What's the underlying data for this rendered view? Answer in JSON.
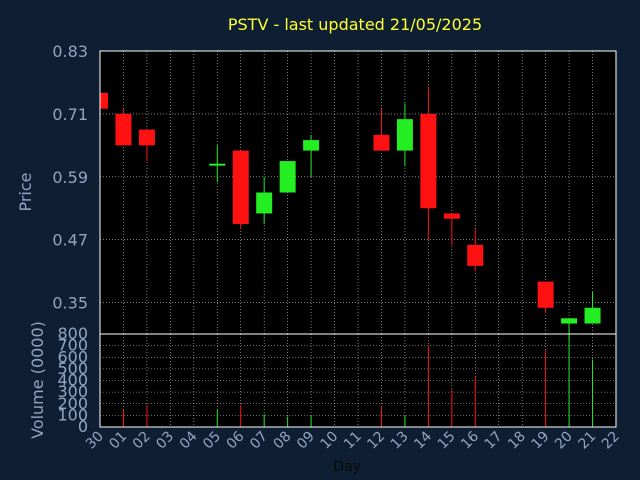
{
  "chart_data": {
    "type": "candlestick",
    "title": "PSTV - last updated 21/05/2025",
    "xlabel": "Day",
    "price_ylabel": "Price",
    "volume_ylabel": "Volume (0000)",
    "price_ylim": [
      0.29,
      0.83
    ],
    "price_ticks": [
      "0.83",
      "0.71",
      "0.59",
      "0.47",
      "0.35"
    ],
    "volume_ylim": [
      0,
      800
    ],
    "volume_ticks": [
      "800",
      "700",
      "600",
      "500",
      "400",
      "300",
      "200",
      "100",
      "0"
    ],
    "x_ticks": [
      "30",
      "01",
      "02",
      "03",
      "04",
      "05",
      "06",
      "07",
      "08",
      "09",
      "10",
      "11",
      "12",
      "13",
      "14",
      "15",
      "16",
      "17",
      "18",
      "19",
      "20",
      "21",
      "22"
    ],
    "colors": {
      "up": "#22ee22",
      "down": "#ff1111",
      "grid": "#ffffff",
      "text": "#8fa6c3",
      "title": "#ffff33",
      "background": "#0f1f33"
    },
    "candles": [
      {
        "day": "30",
        "open": 0.75,
        "high": 0.75,
        "low": 0.72,
        "close": 0.72,
        "volume": 0
      },
      {
        "day": "01",
        "open": 0.71,
        "high": 0.72,
        "low": 0.65,
        "close": 0.65,
        "volume": 150
      },
      {
        "day": "02",
        "open": 0.68,
        "high": 0.68,
        "low": 0.62,
        "close": 0.65,
        "volume": 190
      },
      {
        "day": "05",
        "open": 0.615,
        "high": 0.65,
        "low": 0.58,
        "close": 0.615,
        "volume": 150
      },
      {
        "day": "06",
        "open": 0.64,
        "high": 0.64,
        "low": 0.49,
        "close": 0.5,
        "volume": 190
      },
      {
        "day": "07",
        "open": 0.52,
        "high": 0.59,
        "low": 0.5,
        "close": 0.56,
        "volume": 110
      },
      {
        "day": "08",
        "open": 0.56,
        "high": 0.62,
        "low": 0.56,
        "close": 0.62,
        "volume": 90
      },
      {
        "day": "09",
        "open": 0.64,
        "high": 0.67,
        "low": 0.59,
        "close": 0.66,
        "volume": 100
      },
      {
        "day": "12",
        "open": 0.67,
        "high": 0.72,
        "low": 0.64,
        "close": 0.64,
        "volume": 170
      },
      {
        "day": "13",
        "open": 0.64,
        "high": 0.73,
        "low": 0.61,
        "close": 0.7,
        "volume": 100
      },
      {
        "day": "14",
        "open": 0.71,
        "high": 0.76,
        "low": 0.47,
        "close": 0.53,
        "volume": 700
      },
      {
        "day": "15",
        "open": 0.52,
        "high": 0.52,
        "low": 0.46,
        "close": 0.51,
        "volume": 320
      },
      {
        "day": "16",
        "open": 0.46,
        "high": 0.49,
        "low": 0.41,
        "close": 0.42,
        "volume": 430
      },
      {
        "day": "19",
        "open": 0.39,
        "high": 0.39,
        "low": 0.33,
        "close": 0.34,
        "volume": 660
      },
      {
        "day": "20",
        "open": 0.31,
        "high": 0.32,
        "low": 0.28,
        "close": 0.32,
        "volume": 800
      },
      {
        "day": "21",
        "open": 0.31,
        "high": 0.37,
        "low": 0.31,
        "close": 0.34,
        "volume": 580
      }
    ]
  }
}
